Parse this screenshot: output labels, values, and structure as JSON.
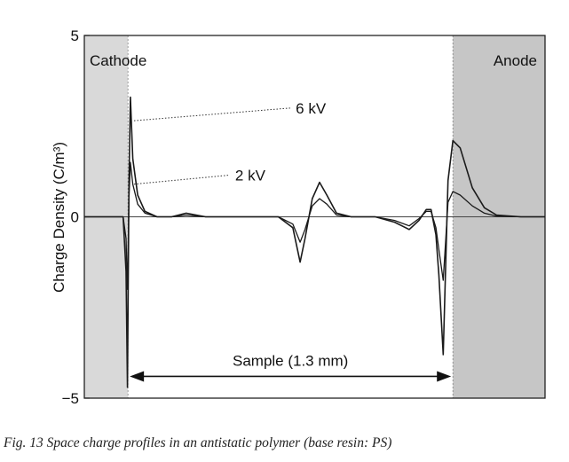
{
  "caption": "Fig. 13 Space charge profiles in an antistatic polymer (base resin: PS)",
  "chart_data": {
    "type": "line",
    "title": "",
    "ylabel": "Charge Density (C/m³)",
    "xlabel": "",
    "xlim": [
      0,
      1.9
    ],
    "ylim": [
      -5,
      5
    ],
    "yticks": [
      {
        "value": 5,
        "label": "5"
      },
      {
        "value": 0,
        "label": "0"
      },
      {
        "value": -5,
        "label": "−5"
      }
    ],
    "grid": false,
    "regions": [
      {
        "name": "cathode",
        "label": "Cathode",
        "x": [
          0,
          0.18
        ],
        "color": "#d9d9d9"
      },
      {
        "name": "anode",
        "label": "Anode",
        "x": [
          1.52,
          1.9
        ],
        "color": "#c6c6c6"
      }
    ],
    "sample_annotation": {
      "label": "Sample (1.3 mm)",
      "x": [
        0.18,
        1.52
      ],
      "y": -4.4
    },
    "series": [
      {
        "name": "6 kV",
        "label_y": 3.0,
        "x": [
          0,
          0.16,
          0.172,
          0.178,
          0.184,
          0.19,
          0.2,
          0.22,
          0.25,
          0.3,
          0.36,
          0.42,
          0.5,
          0.6,
          0.7,
          0.8,
          0.86,
          0.89,
          0.91,
          0.94,
          0.97,
          1.0,
          1.04,
          1.1,
          1.2,
          1.28,
          1.34,
          1.38,
          1.41,
          1.43,
          1.45,
          1.462,
          1.48,
          1.5,
          1.52,
          1.55,
          1.6,
          1.65,
          1.7,
          1.8,
          1.9
        ],
        "values": [
          0,
          0,
          -1.5,
          -4.7,
          1.0,
          3.3,
          1.6,
          0.6,
          0.15,
          0.0,
          0.0,
          0.1,
          0.0,
          0.0,
          0.0,
          0.0,
          -0.3,
          -1.25,
          -0.6,
          0.5,
          0.95,
          0.6,
          0.1,
          0.0,
          0.0,
          -0.15,
          -0.35,
          -0.1,
          0.2,
          0.2,
          -0.5,
          -1.6,
          -3.8,
          1.0,
          2.1,
          1.9,
          0.8,
          0.25,
          0.05,
          0.0,
          0.0
        ]
      },
      {
        "name": "2 kV",
        "label_y": 1.15,
        "x": [
          0,
          0.16,
          0.172,
          0.178,
          0.184,
          0.19,
          0.2,
          0.22,
          0.25,
          0.3,
          0.36,
          0.42,
          0.5,
          0.6,
          0.7,
          0.8,
          0.86,
          0.89,
          0.91,
          0.94,
          0.97,
          1.0,
          1.04,
          1.1,
          1.2,
          1.28,
          1.34,
          1.38,
          1.41,
          1.43,
          1.45,
          1.462,
          1.48,
          1.5,
          1.52,
          1.55,
          1.6,
          1.65,
          1.7,
          1.8,
          1.9
        ],
        "values": [
          0,
          0,
          -0.6,
          -2.0,
          0.5,
          1.5,
          0.9,
          0.35,
          0.1,
          0.0,
          0.0,
          0.05,
          0.0,
          0.0,
          0.0,
          0.0,
          -0.2,
          -0.7,
          -0.35,
          0.3,
          0.5,
          0.35,
          0.05,
          0.0,
          0.0,
          -0.1,
          -0.25,
          -0.05,
          0.15,
          0.15,
          -0.3,
          -0.9,
          -1.75,
          0.4,
          0.7,
          0.6,
          0.3,
          0.1,
          0.02,
          0.0,
          0.0
        ]
      }
    ]
  }
}
